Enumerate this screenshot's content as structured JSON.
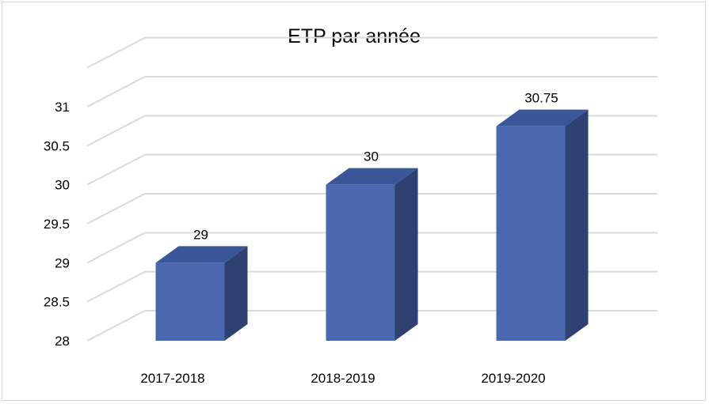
{
  "chart_data": {
    "type": "bar",
    "title": "ETP par année",
    "categories": [
      "2017-2018",
      "2018-2019",
      "2019-2020"
    ],
    "values": [
      29,
      30,
      30.75
    ],
    "data_labels": [
      "29",
      "30",
      "30.75"
    ],
    "y_ticks": [
      "28",
      "28.5",
      "29",
      "29.5",
      "30",
      "30.5",
      "31"
    ],
    "ylim": [
      28,
      31
    ],
    "xlabel": "",
    "ylabel": "",
    "grid": true,
    "three_d": true,
    "colors": {
      "bar_front": "#4a67b0",
      "bar_side": "#2e4170",
      "bar_top": "#3a5598",
      "grid": "#d9d9d9"
    }
  }
}
